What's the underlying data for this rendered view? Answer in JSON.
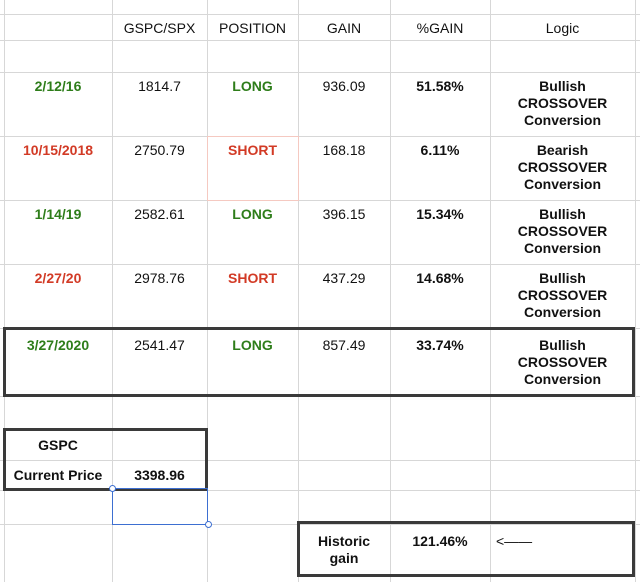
{
  "columns": [
    "GSPC/SPX",
    "POSITION",
    "GAIN",
    "%GAIN",
    "Logic"
  ],
  "rows": [
    {
      "date": "2/12/16",
      "date_color": "green",
      "price": "1814.7",
      "position": "LONG",
      "position_color": "green",
      "gain": "936.09",
      "pct_gain": "51.58%",
      "logic": [
        "Bullish",
        "CROSSOVER",
        "Conversion"
      ]
    },
    {
      "date": "10/15/2018",
      "date_color": "red",
      "price": "2750.79",
      "position": "SHORT",
      "position_color": "red",
      "gain": "168.18",
      "pct_gain": "6.11%",
      "logic": [
        "Bearish",
        "CROSSOVER",
        "Conversion"
      ]
    },
    {
      "date": "1/14/19",
      "date_color": "green",
      "price": "2582.61",
      "position": "LONG",
      "position_color": "green",
      "gain": "396.15",
      "pct_gain": "15.34%",
      "logic": [
        "Bullish",
        "CROSSOVER",
        "Conversion"
      ]
    },
    {
      "date": "2/27/20",
      "date_color": "red",
      "price": "2978.76",
      "position": "SHORT",
      "position_color": "red",
      "gain": "437.29",
      "pct_gain": "14.68%",
      "logic": [
        "Bullish",
        "CROSSOVER",
        "Conversion"
      ]
    },
    {
      "date": "3/27/2020",
      "date_color": "green",
      "price": "2541.47",
      "position": "LONG",
      "position_color": "green",
      "gain": "857.49",
      "pct_gain": "33.74%",
      "logic": [
        "Bullish",
        "CROSSOVER",
        "Conversion"
      ]
    }
  ],
  "current": {
    "symbol": "GSPC",
    "label": "Current Price",
    "price": "3398.96"
  },
  "historic": {
    "label_line1": "Historic",
    "label_line2": "gain",
    "value": "121.46%",
    "arrow": "<——"
  },
  "colors": {
    "green": "#2e7d1a",
    "red": "#d23a25",
    "box_border": "#3a3a3a",
    "selection": "#3d6fd1",
    "grid": "#d7d7d7"
  }
}
